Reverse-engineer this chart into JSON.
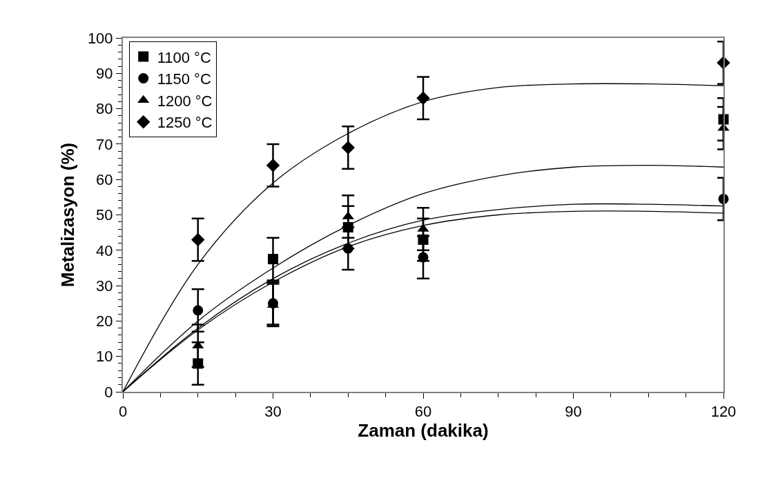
{
  "chart_data": {
    "type": "scatter",
    "xlabel": "Zaman (dakika)",
    "ylabel": "Metalizasyon (%)",
    "x": [
      15,
      30,
      45,
      60,
      120
    ],
    "series": [
      {
        "name": "1100 °C",
        "color": "#000000",
        "marker": "square",
        "values": [
          8,
          37.5,
          46.5,
          43,
          77
        ],
        "errors": [
          6,
          6,
          6,
          6,
          6
        ]
      },
      {
        "name": "1150 °C",
        "color": "#000000",
        "marker": "circle",
        "values": [
          23,
          25,
          40.5,
          38,
          54.5
        ],
        "errors": [
          6,
          6,
          6,
          6,
          6
        ]
      },
      {
        "name": "1200 °C",
        "color": "#000000",
        "marker": "triangle",
        "values": [
          13,
          24.5,
          49.5,
          46,
          74.5
        ],
        "errors": [
          6,
          6,
          6,
          6,
          6
        ]
      },
      {
        "name": "1250 °C",
        "color": "#000000",
        "marker": "diamond",
        "values": [
          43,
          64,
          69,
          83,
          93
        ],
        "errors": [
          6,
          6,
          6,
          6,
          6
        ]
      },
      {
        "type": "line",
        "color": "#000000",
        "x": [
          0,
          15,
          30,
          45,
          60,
          75,
          90,
          105,
          120
        ],
        "values": [
          0,
          36,
          59,
          73,
          82,
          86,
          87,
          87,
          86.5
        ]
      },
      {
        "type": "line",
        "color": "#000000",
        "x": [
          0,
          15,
          30,
          45,
          60,
          75,
          90,
          105,
          120
        ],
        "values": [
          0,
          20,
          35,
          47,
          56,
          61,
          63.5,
          64,
          63.5
        ]
      },
      {
        "type": "line",
        "color": "#000000",
        "x": [
          0,
          15,
          30,
          45,
          60,
          75,
          90,
          105,
          120
        ],
        "values": [
          0,
          18,
          32,
          42,
          48.5,
          51.5,
          53,
          53,
          52.5
        ]
      },
      {
        "type": "line",
        "color": "#000000",
        "x": [
          0,
          15,
          30,
          45,
          60,
          75,
          90,
          105,
          120
        ],
        "values": [
          0,
          17.5,
          31,
          41,
          47,
          50,
          51,
          51,
          50.5
        ]
      }
    ],
    "xlim": [
      0,
      120
    ],
    "xticks": [
      0,
      30,
      60,
      90,
      120
    ],
    "ylim": [
      0,
      100
    ],
    "yticks": [
      0,
      10,
      20,
      30,
      40,
      50,
      60,
      70,
      80,
      90,
      100
    ],
    "legend": "top left"
  }
}
